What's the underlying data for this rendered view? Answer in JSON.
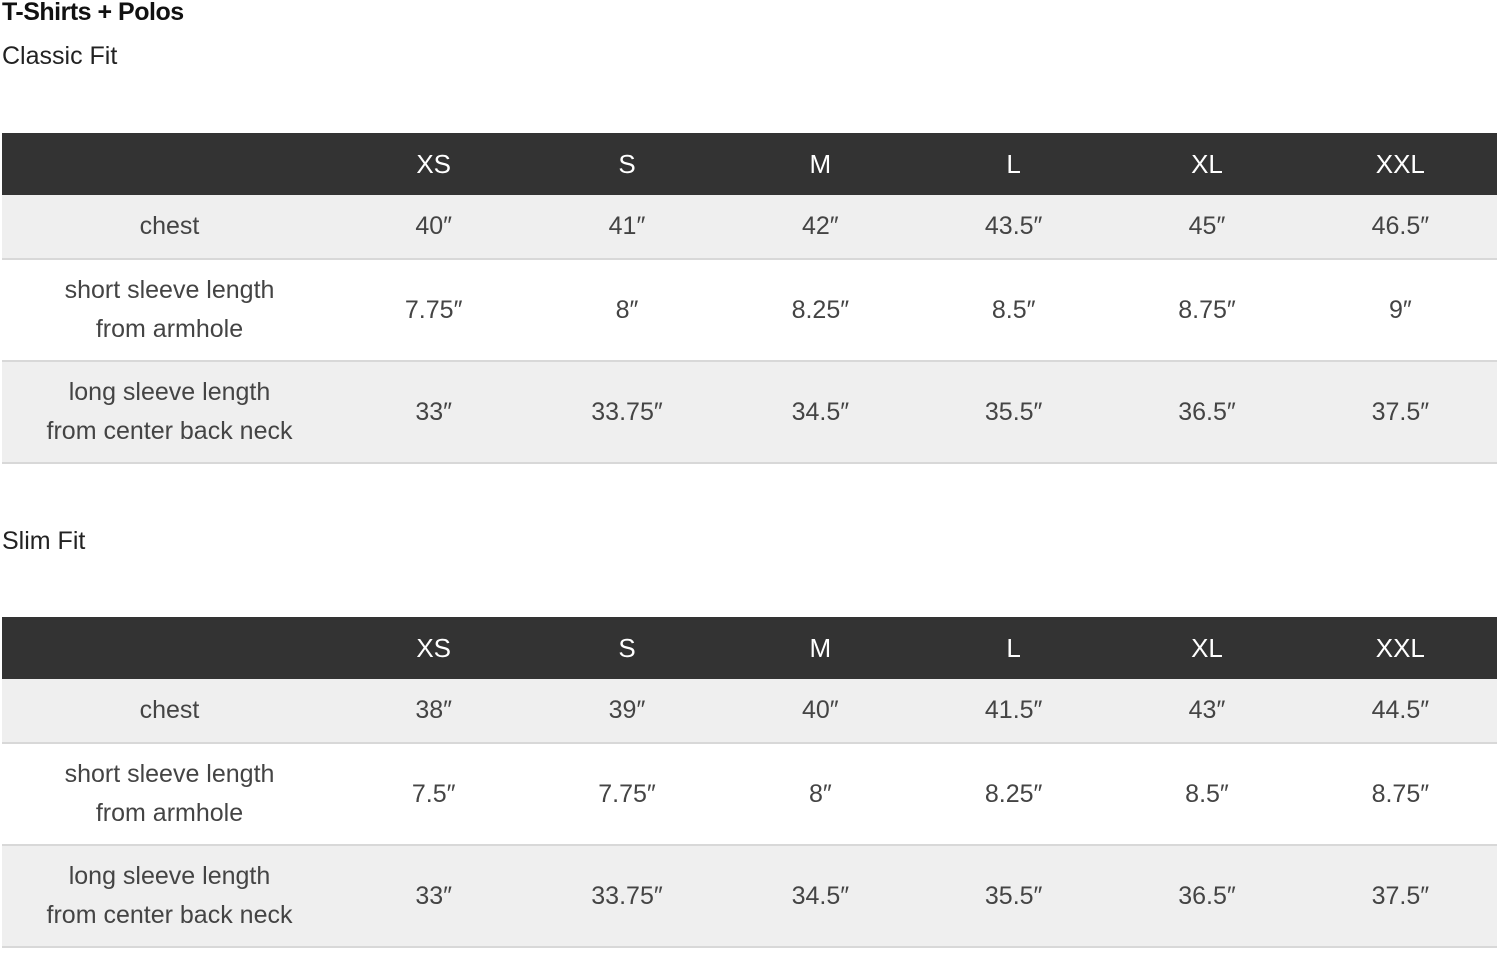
{
  "title": "T-Shirts + Polos",
  "sizes": [
    "XS",
    "S",
    "M",
    "L",
    "XL",
    "XXL"
  ],
  "tables": [
    {
      "name": "Classic Fit",
      "rows": [
        {
          "label1": "chest",
          "label2": "",
          "values": [
            "40″",
            "41″",
            "42″",
            "43.5″",
            "45″",
            "46.5″"
          ]
        },
        {
          "label1": "short sleeve length",
          "label2": "from armhole",
          "values": [
            "7.75″",
            "8″",
            "8.25″",
            "8.5″",
            "8.75″",
            "9″"
          ]
        },
        {
          "label1": "long sleeve length",
          "label2": "from center back neck",
          "values": [
            "33″",
            "33.75″",
            "34.5″",
            "35.5″",
            "36.5″",
            "37.5″"
          ]
        }
      ]
    },
    {
      "name": "Slim Fit",
      "rows": [
        {
          "label1": "chest",
          "label2": "",
          "values": [
            "38″",
            "39″",
            "40″",
            "41.5″",
            "43″",
            "44.5″"
          ]
        },
        {
          "label1": "short sleeve length",
          "label2": "from armhole",
          "values": [
            "7.5″",
            "7.75″",
            "8″",
            "8.25″",
            "8.5″",
            "8.75″"
          ]
        },
        {
          "label1": "long sleeve length",
          "label2": "from center back neck",
          "values": [
            "33″",
            "33.75″",
            "34.5″",
            "35.5″",
            "36.5″",
            "37.5″"
          ]
        }
      ]
    }
  ],
  "colors": {
    "header_bg": "#333333",
    "row_alt": "#efefef"
  }
}
